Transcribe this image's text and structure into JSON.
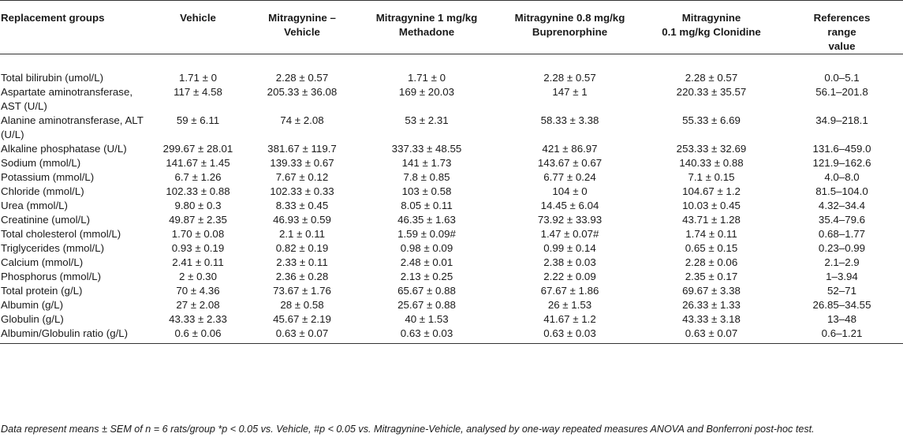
{
  "table": {
    "headers": [
      "Replacement groups",
      "Vehicle",
      "Mitragynine –\nVehicle",
      "Mitragynine 1 mg/kg\nMethadone",
      "Mitragynine 0.8 mg/kg\nBuprenorphine",
      "Mitragynine\n0.1 mg/kg Clonidine",
      "References\nrange\nvalue"
    ],
    "rows": [
      [
        "Total bilirubin (umol/L)",
        "1.71 ± 0",
        "2.28 ± 0.57",
        "1.71 ± 0",
        "2.28 ± 0.57",
        "2.28 ± 0.57",
        "0.0–5.1"
      ],
      [
        "Aspartate aminotransferase, AST (U/L)",
        "117 ± 4.58",
        "205.33 ± 36.08",
        "169 ± 20.03",
        "147 ± 1",
        "220.33 ± 35.57",
        "56.1–201.8"
      ],
      [
        "Alanine aminotransferase, ALT (U/L)",
        "59 ± 6.11",
        "74 ± 2.08",
        "53 ± 2.31",
        "58.33 ± 3.38",
        "55.33 ± 6.69",
        "34.9–218.1"
      ],
      [
        "Alkaline phosphatase (U/L)",
        "299.67 ± 28.01",
        "381.67 ± 119.7",
        "337.33 ± 48.55",
        "421 ± 86.97",
        "253.33 ± 32.69",
        "131.6–459.0"
      ],
      [
        "Sodium (mmol/L)",
        "141.67 ± 1.45",
        "139.33 ± 0.67",
        "141 ± 1.73",
        "143.67 ± 0.67",
        "140.33 ± 0.88",
        "121.9–162.6"
      ],
      [
        "Potassium (mmol/L)",
        "6.7 ± 1.26",
        "7.67 ± 0.12",
        "7.8 ± 0.85",
        "6.77 ± 0.24",
        "7.1 ± 0.15",
        "4.0–8.0"
      ],
      [
        "Chloride (mmol/L)",
        "102.33 ± 0.88",
        "102.33 ± 0.33",
        "103 ± 0.58",
        "104 ± 0",
        "104.67 ± 1.2",
        "81.5–104.0"
      ],
      [
        "Urea (mmol/L)",
        "9.80 ± 0.3",
        "8.33 ± 0.45",
        "8.05 ± 0.11",
        "14.45 ± 6.04",
        "10.03 ± 0.45",
        "4.32–34.4"
      ],
      [
        "Creatinine (umol/L)",
        "49.87 ± 2.35",
        "46.93 ± 0.59",
        "46.35 ± 1.63",
        "73.92 ± 33.93",
        "43.71 ± 1.28",
        "35.4–79.6"
      ],
      [
        "Total cholesterol (mmol/L)",
        "1.70 ± 0.08",
        "2.1 ± 0.11",
        "1.59 ± 0.09#",
        "1.47 ± 0.07#",
        "1.74 ± 0.11",
        "0.68–1.77"
      ],
      [
        "Triglycerides (mmol/L)",
        "0.93 ± 0.19",
        "0.82 ± 0.19",
        "0.98 ± 0.09",
        "0.99 ± 0.14",
        "0.65 ± 0.15",
        "0.23–0.99"
      ],
      [
        "Calcium (mmol/L)",
        "2.41 ± 0.11",
        "2.33 ± 0.11",
        "2.48 ± 0.01",
        "2.38 ± 0.03",
        "2.28 ± 0.06",
        "2.1–2.9"
      ],
      [
        "Phosphorus (mmol/L)",
        "2 ± 0.30",
        "2.36 ± 0.28",
        "2.13 ± 0.25",
        "2.22 ± 0.09",
        "2.35 ± 0.17",
        "1–3.94"
      ],
      [
        "Total protein (g/L)",
        "70 ± 4.36",
        "73.67 ± 1.76",
        "65.67 ± 0.88",
        "67.67 ± 1.86",
        "69.67 ± 3.38",
        "52–71"
      ],
      [
        "Albumin (g/L)",
        "27 ± 2.08",
        "28 ± 0.58",
        "25.67 ± 0.88",
        "26 ± 1.53",
        "26.33 ± 1.33",
        "26.85–34.55"
      ],
      [
        "Globulin (g/L)",
        "43.33 ± 2.33",
        "45.67 ± 2.19",
        "40 ± 1.53",
        "41.67 ± 1.2",
        "43.33 ± 3.18",
        "13–48"
      ],
      [
        "Albumin/Globulin ratio (g/L)",
        "0.6 ± 0.06",
        "0.63 ± 0.07",
        "0.63 ± 0.03",
        "0.63 ± 0.03",
        "0.63 ± 0.07",
        "0.6–1.21"
      ]
    ]
  },
  "footnote": "Data represent means ± SEM of n = 6 rats/group *p < 0.05 vs. Vehicle, #p < 0.05 vs. Mitragynine-Vehicle, analysed by one-way repeated measures ANOVA and Bonferroni post-hoc test."
}
